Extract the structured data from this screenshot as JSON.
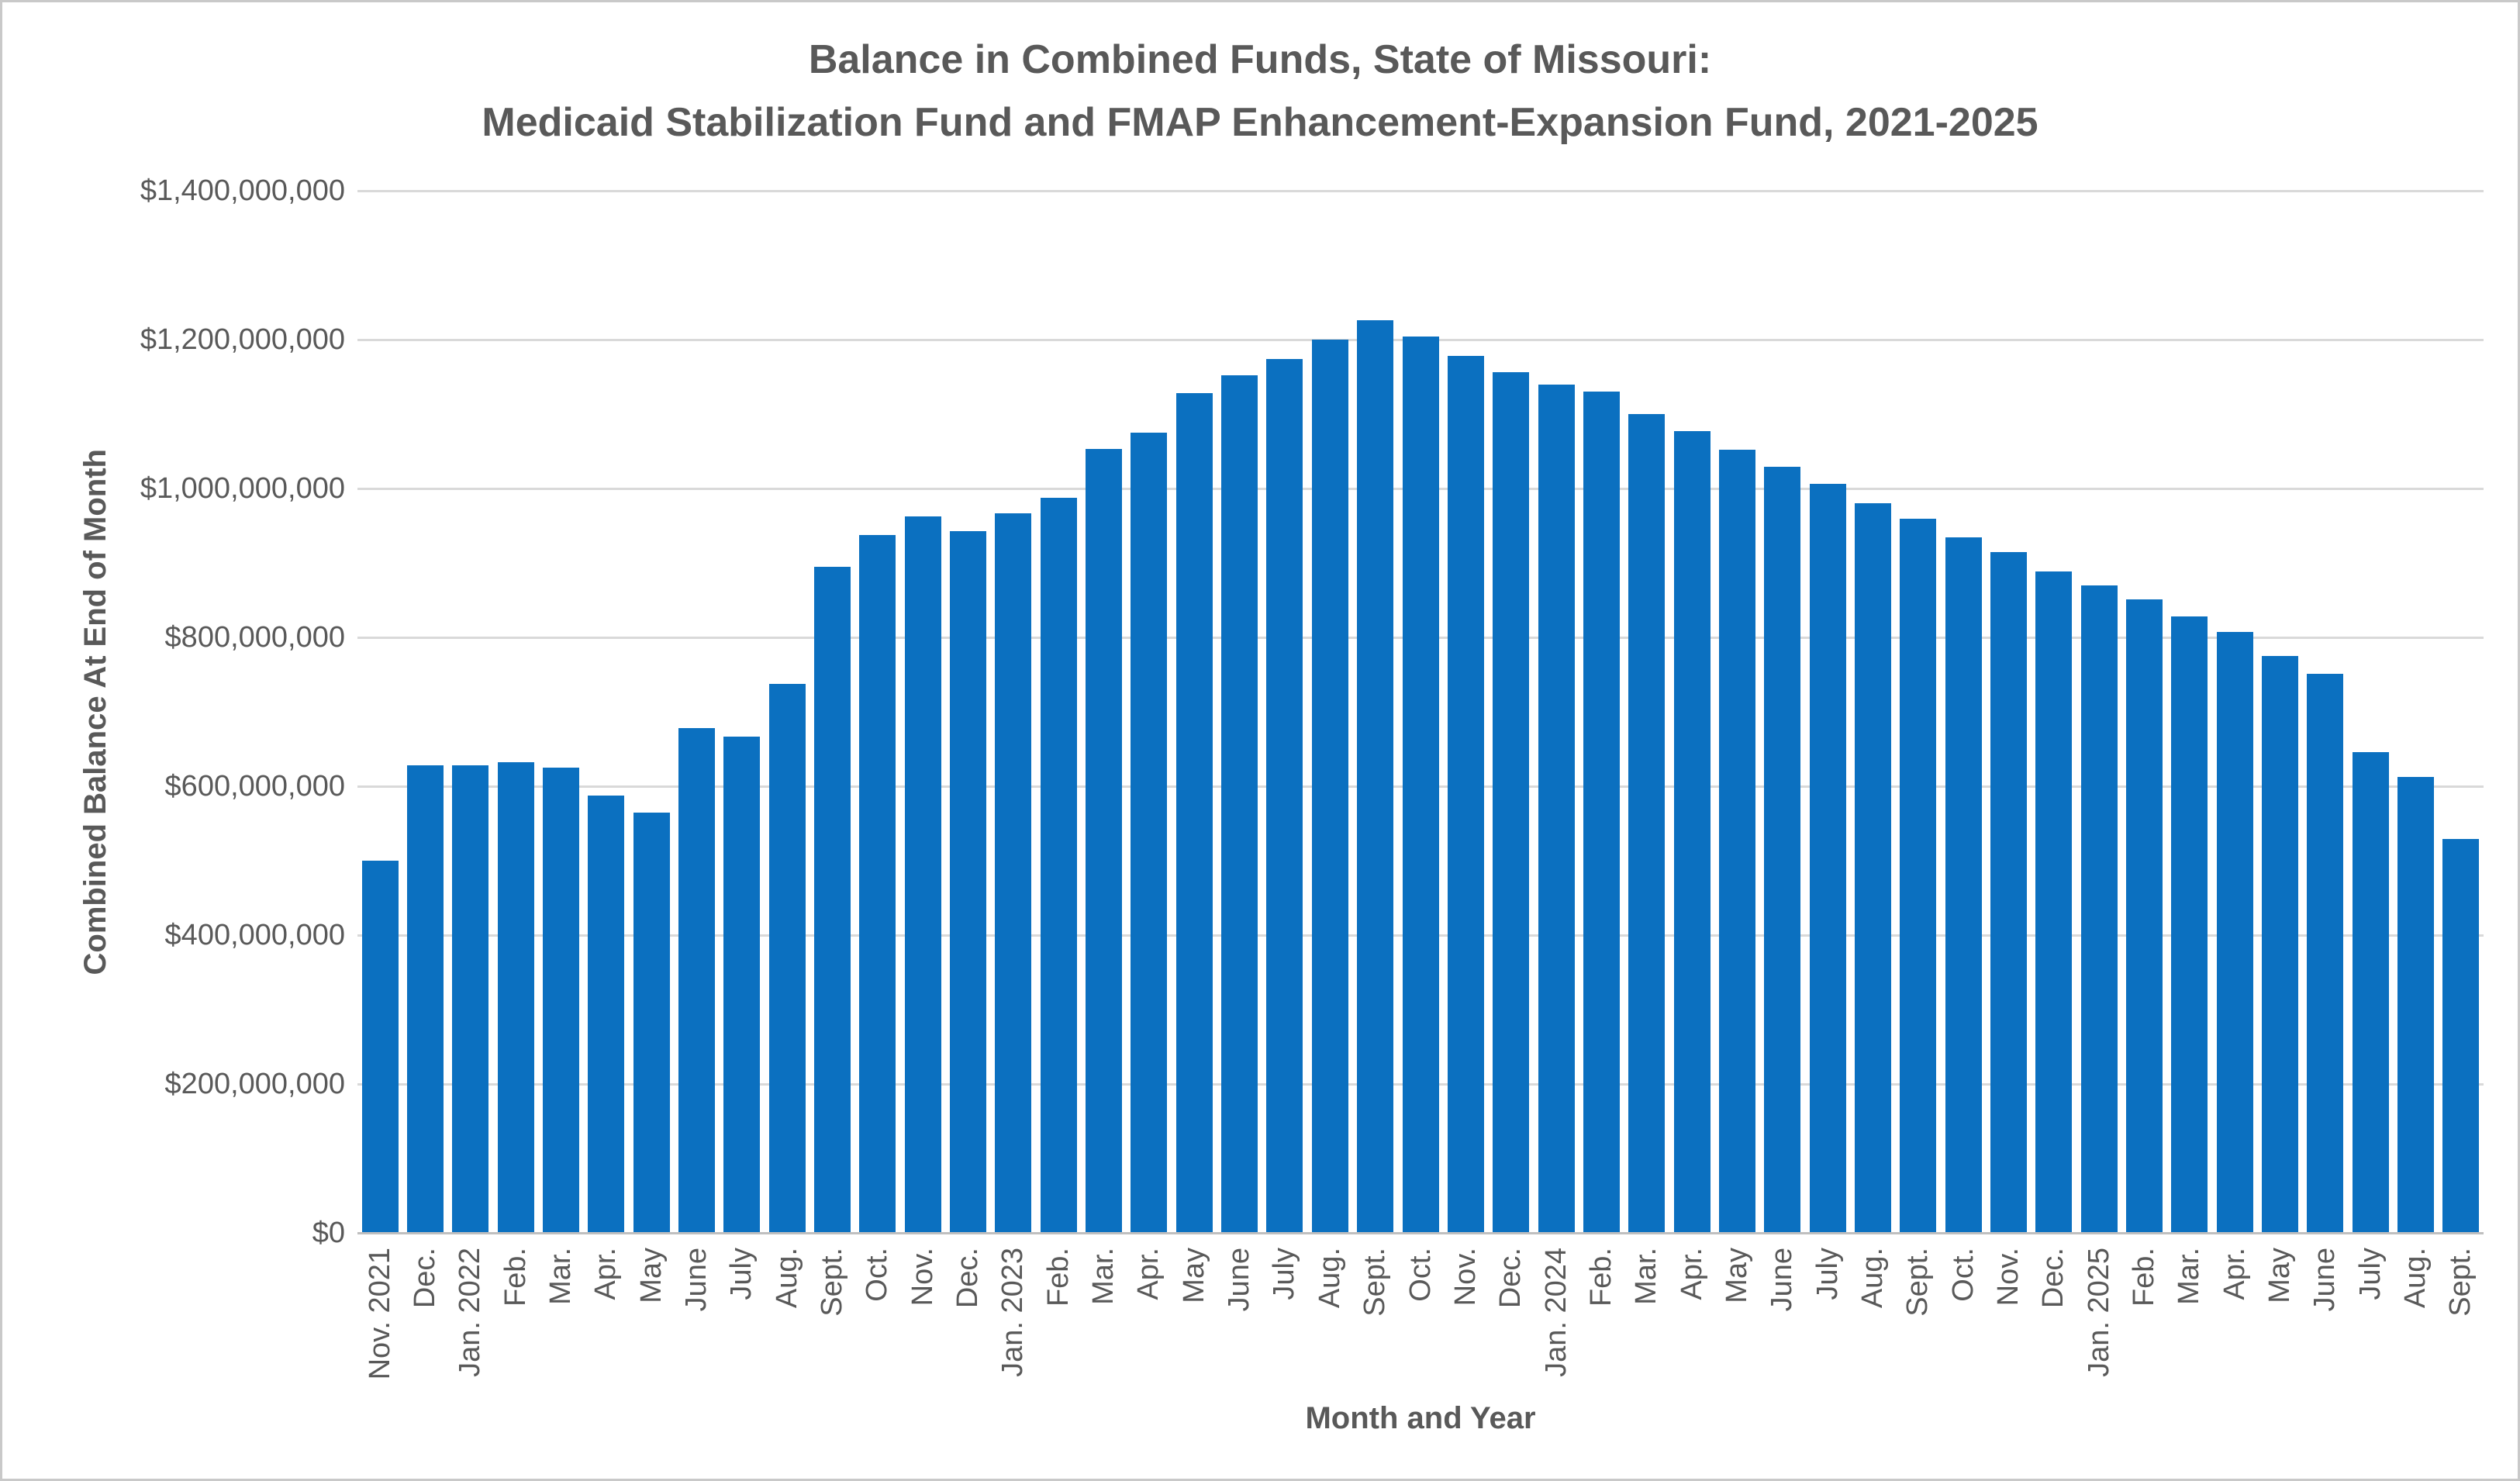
{
  "styles": {
    "background": "#ffffff",
    "border_color": "#c9c9c9",
    "text_color": "#595959",
    "gridline_color": "#d9d9d9",
    "axis_line_color": "#bfbfbf",
    "bar_color": "#0b70c0"
  },
  "chart_data": {
    "type": "bar",
    "title": "Balance in Combined Funds, State of Missouri: Medicaid Stabilization Fund and FMAP Enhancement-Expansion Fund, 2021-2025",
    "title_line1": "Balance in Combined Funds, State of Missouri:",
    "title_line2": "Medicaid Stabilization Fund and FMAP Enhancement-Expansion Fund, 2021-2025",
    "xlabel": "Month and Year",
    "ylabel": "Combined Balance At End of Month",
    "ylim": [
      0,
      1400000000
    ],
    "grid": true,
    "legend": false,
    "categories": [
      "Nov. 2021",
      "Dec.",
      "Jan. 2022",
      "Feb.",
      "Mar.",
      "Apr.",
      "May",
      "June",
      "July",
      "Aug.",
      "Sept.",
      "Oct.",
      "Nov.",
      "Dec.",
      "Jan. 2023",
      "Feb.",
      "Mar.",
      "Apr.",
      "May",
      "June",
      "July",
      "Aug.",
      "Sept.",
      "Oct.",
      "Nov.",
      "Dec.",
      "Jan. 2024",
      "Feb.",
      "Mar.",
      "Apr.",
      "May",
      "June",
      "July",
      "Aug.",
      "Sept.",
      "Oct.",
      "Nov.",
      "Dec.",
      "Jan. 2025",
      "Feb.",
      "Mar.",
      "Apr.",
      "May",
      "June",
      "July",
      "Aug.",
      "Sept."
    ],
    "values": [
      500000000,
      628000000,
      628000000,
      632000000,
      625000000,
      587000000,
      565000000,
      678000000,
      667000000,
      737000000,
      895000000,
      938000000,
      963000000,
      943000000,
      967000000,
      988000000,
      1053000000,
      1075000000,
      1128000000,
      1152000000,
      1174000000,
      1200000000,
      1226000000,
      1204000000,
      1178000000,
      1156000000,
      1140000000,
      1130000000,
      1100000000,
      1077000000,
      1052000000,
      1029000000,
      1006000000,
      980000000,
      959000000,
      934000000,
      915000000,
      889000000,
      870000000,
      851000000,
      828000000,
      807000000,
      775000000,
      751000000,
      646000000,
      612000000,
      529000000
    ],
    "ytick_values": [
      0,
      200000000,
      400000000,
      600000000,
      800000000,
      1000000000,
      1200000000,
      1400000000
    ],
    "ytick_labels": [
      "$0",
      "$200,000,000",
      "$400,000,000",
      "$600,000,000",
      "$800,000,000",
      "$1,000,000,000",
      "$1,200,000,000",
      "$1,400,000,000"
    ]
  }
}
